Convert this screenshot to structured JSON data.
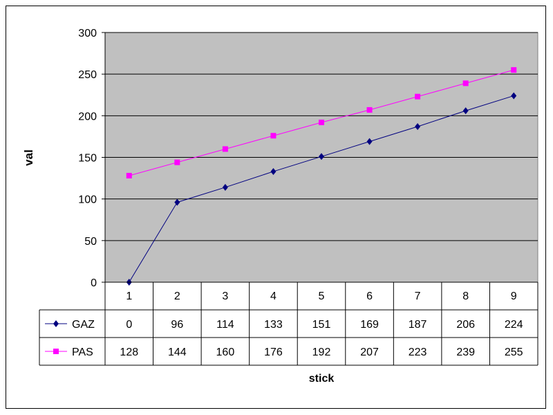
{
  "chart_data": {
    "type": "line",
    "xlabel": "stick",
    "ylabel": "val",
    "ylim": [
      0,
      300
    ],
    "yticks": [
      0,
      50,
      100,
      150,
      200,
      250,
      300
    ],
    "grid": true,
    "legend": "data-table",
    "categories": [
      "1",
      "2",
      "3",
      "4",
      "5",
      "6",
      "7",
      "8",
      "9"
    ],
    "series": [
      {
        "name": "GAZ",
        "color": "#000080",
        "marker": "diamond",
        "values": [
          0,
          96,
          114,
          133,
          151,
          169,
          187,
          206,
          224
        ]
      },
      {
        "name": "PAS",
        "color": "#ff00ff",
        "marker": "square",
        "values": [
          128,
          144,
          160,
          176,
          192,
          207,
          223,
          239,
          255
        ]
      }
    ]
  },
  "colors": {
    "plot_area": "#c0c0c0",
    "gridline": "#000000"
  }
}
